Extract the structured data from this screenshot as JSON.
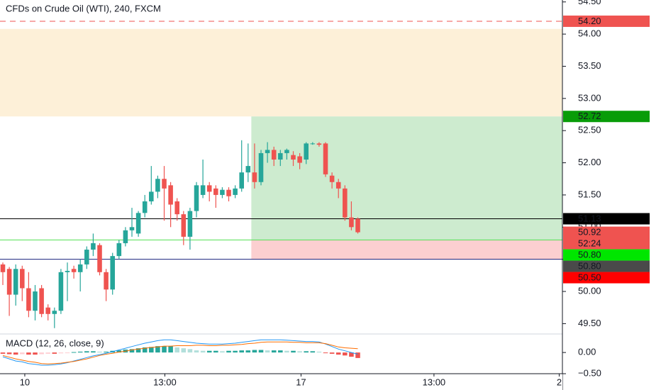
{
  "chart_data": {
    "type": "candlestick",
    "title": "CFDs on Crude Oil (WTI), 240, FXCM",
    "up_color": "#26a69a",
    "down_color": "#ef5350",
    "ohlc": [
      [
        50.42,
        50.45,
        50.1,
        50.3
      ],
      [
        50.35,
        50.38,
        49.62,
        49.95
      ],
      [
        49.95,
        50.42,
        49.78,
        50.35
      ],
      [
        50.35,
        50.4,
        49.85,
        50.05
      ],
      [
        50.05,
        50.3,
        49.6,
        49.7
      ],
      [
        49.7,
        50.1,
        49.55,
        50.0
      ],
      [
        50.05,
        50.1,
        49.6,
        49.65
      ],
      [
        49.75,
        49.8,
        49.55,
        49.65
      ],
      [
        49.65,
        49.75,
        49.43,
        49.7
      ],
      [
        49.7,
        50.35,
        49.65,
        50.3
      ],
      [
        50.3,
        50.45,
        49.85,
        50.32
      ],
      [
        50.35,
        50.4,
        50.2,
        50.3
      ],
      [
        50.3,
        50.5,
        50.0,
        50.42
      ],
      [
        50.42,
        50.7,
        50.35,
        50.65
      ],
      [
        50.65,
        50.9,
        50.55,
        50.75
      ],
      [
        50.72,
        50.75,
        50.25,
        50.3
      ],
      [
        50.3,
        50.35,
        49.85,
        50.03
      ],
      [
        50.03,
        50.6,
        49.95,
        50.55
      ],
      [
        50.55,
        50.8,
        50.5,
        50.75
      ],
      [
        50.75,
        51.0,
        50.7,
        50.95
      ],
      [
        50.95,
        51.3,
        50.85,
        51.0
      ],
      [
        50.9,
        51.25,
        50.85,
        51.22
      ],
      [
        51.22,
        51.5,
        51.15,
        51.4
      ],
      [
        51.4,
        51.95,
        51.35,
        51.55
      ],
      [
        51.55,
        51.8,
        51.45,
        51.75
      ],
      [
        51.75,
        51.95,
        51.1,
        51.6
      ],
      [
        51.65,
        51.7,
        51.0,
        51.35
      ],
      [
        51.4,
        51.45,
        51.1,
        51.2
      ],
      [
        51.2,
        51.25,
        50.72,
        50.85
      ],
      [
        50.85,
        51.3,
        50.65,
        51.25
      ],
      [
        51.25,
        51.7,
        51.15,
        51.65
      ],
      [
        51.5,
        52.05,
        51.45,
        51.65
      ],
      [
        51.65,
        51.7,
        51.4,
        51.55
      ],
      [
        51.6,
        51.65,
        51.3,
        51.5
      ],
      [
        51.5,
        51.62,
        51.45,
        51.58
      ],
      [
        51.58,
        51.62,
        51.4,
        51.48
      ],
      [
        51.5,
        51.65,
        51.45,
        51.6
      ],
      [
        51.6,
        52.35,
        51.55,
        51.85
      ],
      [
        51.85,
        52.3,
        51.7,
        51.95
      ],
      [
        51.85,
        52.3,
        51.6,
        51.7
      ],
      [
        51.7,
        52.2,
        51.65,
        52.15
      ],
      [
        52.15,
        52.32,
        52.0,
        52.2
      ],
      [
        52.2,
        52.25,
        51.95,
        52.05
      ],
      [
        52.05,
        52.2,
        51.95,
        52.15
      ],
      [
        52.15,
        52.22,
        52.05,
        52.2
      ],
      [
        52.12,
        52.18,
        51.95,
        52.05
      ],
      [
        52.1,
        52.15,
        51.9,
        52.0
      ],
      [
        52.05,
        52.32,
        51.98,
        52.3
      ],
      [
        52.3,
        52.32,
        52.28,
        52.3
      ],
      [
        52.3,
        52.32,
        52.25,
        52.28
      ],
      [
        52.3,
        52.32,
        51.78,
        51.82
      ],
      [
        51.8,
        51.85,
        51.6,
        51.7
      ],
      [
        51.7,
        51.75,
        51.45,
        51.6
      ],
      [
        51.6,
        51.65,
        51.1,
        51.15
      ],
      [
        51.15,
        51.4,
        50.95,
        51.0
      ],
      [
        51.13,
        51.15,
        50.9,
        50.92
      ]
    ],
    "xlim": [
      -0.44,
      86.7
    ],
    "xticks": [
      {
        "value": 3.4,
        "label": "10"
      },
      {
        "value": 25.1,
        "label": "13:00"
      },
      {
        "value": 46.2,
        "label": "17"
      },
      {
        "value": 66.8,
        "label": "13:00"
      },
      {
        "value": 86.2,
        "label": "2"
      }
    ],
    "ylim": [
      49.35,
      54.53
    ],
    "yticks": [
      {
        "value": 54.5,
        "label": "54.50"
      },
      {
        "value": 54,
        "label": "54.00"
      },
      {
        "value": 53.5,
        "label": "53.50"
      },
      {
        "value": 53,
        "label": "53.00"
      },
      {
        "value": 52.5,
        "label": "52.50"
      },
      {
        "value": 52,
        "label": "52.00"
      },
      {
        "value": 51.5,
        "label": "51.50"
      },
      {
        "value": 51,
        "label": "51.00"
      },
      {
        "value": 50.5,
        "label": "50.50"
      },
      {
        "value": 50,
        "label": "50.00"
      },
      {
        "value": 49.5,
        "label": "49.50"
      }
    ],
    "zones": [
      {
        "from": 54.08,
        "to": 52.72,
        "start": -0.44,
        "color": "#fdf0d8"
      },
      {
        "from": 52.72,
        "to": 50.8,
        "start": 38.5,
        "color": "#cdebcf"
      },
      {
        "from": 50.8,
        "to": 50.5,
        "start": 38.5,
        "color": "#fccfd0"
      }
    ],
    "lines": [
      {
        "value": 54.2,
        "color": "#ef5350",
        "style": "dashed"
      },
      {
        "value": 51.13,
        "color": "#000000",
        "style": "solid"
      },
      {
        "value": 50.8,
        "color": "#52e052",
        "style": "solid"
      },
      {
        "value": 50.5,
        "color": "#1a237e",
        "style": "solid"
      }
    ],
    "price_labels": [
      {
        "value": 54.2,
        "label": "54.20",
        "color": "#ef5350"
      },
      {
        "value": 52.72,
        "label": "52.72",
        "color": "#089c08"
      },
      {
        "value": 51.13,
        "label": "51.13",
        "color": "#000000"
      },
      {
        "value": 50.92,
        "label": "50.92",
        "color": "#ef5350",
        "countdown": "52:24"
      },
      {
        "value": 50.8,
        "label": "50.80",
        "color": "#00e600"
      },
      {
        "value": 50.8,
        "label": "50.80",
        "color": "#4a4a4a"
      },
      {
        "value": 50.5,
        "label": "50.50",
        "color": "#ff0000"
      }
    ],
    "macd": {
      "title": "MACD (12, 26, close, 9)",
      "ylim": [
        -0.5,
        0.42
      ],
      "yticks": [
        {
          "value": 0,
          "label": "0.00"
        },
        {
          "value": -0.5,
          "label": "−0.50"
        }
      ],
      "histogram": [
        -0.03,
        -0.04,
        -0.05,
        -0.04,
        -0.05,
        -0.05,
        -0.04,
        -0.03,
        -0.03,
        -0.02,
        -0.01,
        0.01,
        0.02,
        0.03,
        0.03,
        0.02,
        0.02,
        0.04,
        0.05,
        0.07,
        0.08,
        0.1,
        0.12,
        0.13,
        0.15,
        0.15,
        0.15,
        0.12,
        0.1,
        0.08,
        0.05,
        0.04,
        0.04,
        0.04,
        0.03,
        0.04,
        0.04,
        0.05,
        0.05,
        0.06,
        0.06,
        0.05,
        0.05,
        0.05,
        0.04,
        0.04,
        0.03,
        0.03,
        0.03,
        0.02,
        -0.01,
        -0.03,
        -0.05,
        -0.07,
        -0.1,
        -0.13
      ],
      "series": [
        {
          "color": "#2196f3",
          "values": [
            -0.1,
            -0.15,
            -0.2,
            -0.22,
            -0.26,
            -0.28,
            -0.3,
            -0.3,
            -0.29,
            -0.27,
            -0.24,
            -0.2,
            -0.16,
            -0.12,
            -0.08,
            -0.05,
            -0.02,
            0.02,
            0.06,
            0.1,
            0.14,
            0.18,
            0.22,
            0.25,
            0.28,
            0.3,
            0.3,
            0.28,
            0.26,
            0.24,
            0.22,
            0.21,
            0.2,
            0.2,
            0.2,
            0.21,
            0.22,
            0.24,
            0.26,
            0.28,
            0.3,
            0.3,
            0.3,
            0.3,
            0.29,
            0.28,
            0.27,
            0.26,
            0.26,
            0.25,
            0.2,
            0.14,
            0.08,
            0.04,
            0.0,
            -0.04
          ]
        },
        {
          "color": "#ff6d00",
          "values": [
            -0.07,
            -0.11,
            -0.15,
            -0.18,
            -0.21,
            -0.23,
            -0.26,
            -0.27,
            -0.26,
            -0.25,
            -0.23,
            -0.21,
            -0.18,
            -0.15,
            -0.11,
            -0.07,
            -0.04,
            -0.02,
            0.01,
            0.03,
            0.06,
            0.08,
            0.1,
            0.12,
            0.13,
            0.15,
            0.15,
            0.16,
            0.16,
            0.16,
            0.17,
            0.17,
            0.16,
            0.16,
            0.17,
            0.17,
            0.18,
            0.19,
            0.21,
            0.22,
            0.24,
            0.25,
            0.25,
            0.25,
            0.25,
            0.24,
            0.24,
            0.23,
            0.23,
            0.23,
            0.21,
            0.17,
            0.13,
            0.11,
            0.1,
            0.09
          ]
        }
      ]
    }
  }
}
